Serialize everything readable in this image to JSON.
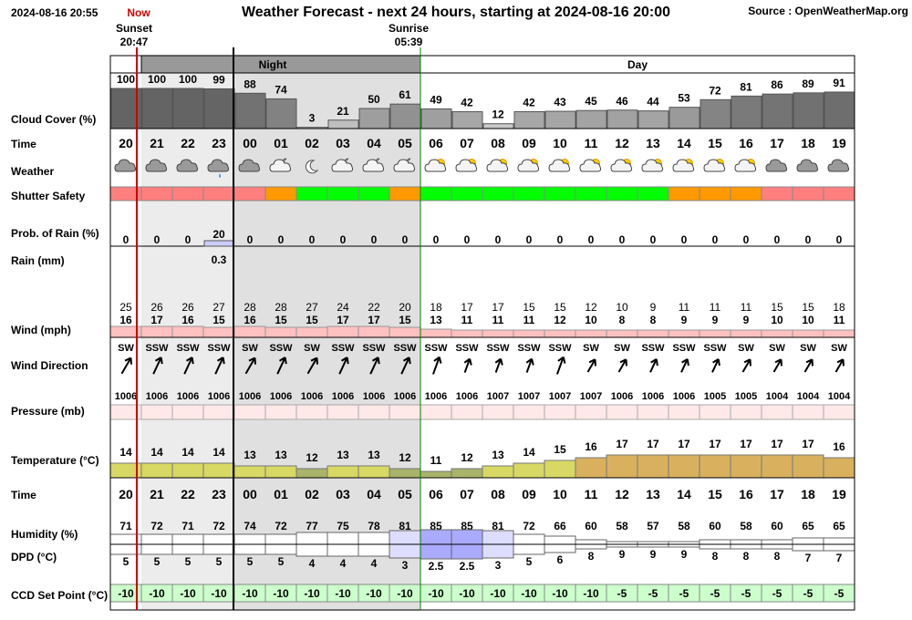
{
  "header": {
    "timestamp": "2024-08-16 20:55",
    "now_label": "Now",
    "title": "Weather Forecast - next 24 hours, starting at 2024-08-16 20:00",
    "source": "Source : OpenWeatherMap.org",
    "sunset_label": "Sunset",
    "sunset_time": "20:47",
    "sunrise_label": "Sunrise",
    "sunrise_time": "05:39",
    "night_label": "Night",
    "day_label": "Day"
  },
  "colors": {
    "shutter_red": "#ff7f7f",
    "shutter_orange": "#ff9900",
    "shutter_green": "#00ff00",
    "now_line": "#cc0000",
    "night_shade": "#e0e0e0",
    "ccd_fill": "#ccffcc",
    "wind_fill": "#ffc0c0",
    "pressure_fill": "#ffe8e8",
    "dpd_fill": "#aaaaff"
  },
  "chart_data": {
    "type": "table",
    "title": "Weather Forecast - next 24 hours, starting at 2024-08-16 20:00",
    "hours": [
      "20",
      "21",
      "22",
      "23",
      "00",
      "01",
      "02",
      "03",
      "04",
      "05",
      "06",
      "07",
      "08",
      "09",
      "10",
      "11",
      "12",
      "13",
      "14",
      "15",
      "16",
      "17",
      "18",
      "19"
    ],
    "row_labels": {
      "cloud": "Cloud Cover (%)",
      "time": "Time",
      "weather": "Weather",
      "shutter": "Shutter Safety",
      "rain_prob": "Prob. of Rain (%)",
      "rain": "Rain (mm)",
      "wind": "Wind (mph)",
      "wind_dir": "Wind Direction",
      "pressure": "Pressure (mb)",
      "temp": "Temperature (°C)",
      "time2": "Time",
      "humidity": "Humidity (%)",
      "dpd": "DPD (°C)",
      "ccd": "CCD Set Point (°C)"
    },
    "cloud_cover": [
      100,
      100,
      100,
      99,
      88,
      74,
      3,
      21,
      50,
      61,
      49,
      42,
      12,
      42,
      43,
      45,
      46,
      44,
      53,
      72,
      81,
      86,
      89,
      91
    ],
    "weather_icons": [
      "cloud-icon",
      "cloud-icon",
      "cloud-icon",
      "cloud-rain-icon",
      "cloud-icon",
      "cloud-moon-icon",
      "moon-icon",
      "cloud-moon-icon",
      "cloud-moon-icon",
      "cloud-moon-icon",
      "cloud-sun-icon",
      "cloud-sun-icon",
      "cloud-sun-icon",
      "cloud-sun-icon",
      "cloud-sun-icon",
      "cloud-sun-icon",
      "cloud-sun-icon",
      "cloud-sun-icon",
      "cloud-sun-icon",
      "cloud-sun-icon",
      "cloud-sun-icon",
      "cloud-icon",
      "cloud-icon",
      "cloud-icon"
    ],
    "shutter_safety": [
      "red",
      "red",
      "red",
      "red",
      "red",
      "orange",
      "green",
      "green",
      "green",
      "orange",
      "green",
      "green",
      "green",
      "green",
      "green",
      "green",
      "green",
      "green",
      "orange",
      "orange",
      "orange",
      "red",
      "red",
      "red"
    ],
    "rain_prob": [
      0,
      0,
      0,
      20,
      0,
      0,
      0,
      0,
      0,
      0,
      0,
      0,
      0,
      0,
      0,
      0,
      0,
      0,
      0,
      0,
      0,
      0,
      0,
      0
    ],
    "rain_mm": [
      "",
      "",
      "",
      "0.3",
      "",
      "",
      "",
      "",
      "",
      "",
      "",
      "",
      "",
      "",
      "",
      "",
      "",
      "",
      "",
      "",
      "",
      "",
      "",
      ""
    ],
    "wind_gust": [
      25,
      26,
      26,
      27,
      28,
      28,
      27,
      24,
      22,
      20,
      18,
      17,
      17,
      15,
      15,
      12,
      10,
      9,
      11,
      11,
      11,
      15,
      15,
      18
    ],
    "wind_speed": [
      16,
      17,
      16,
      15,
      16,
      15,
      15,
      17,
      17,
      15,
      13,
      11,
      11,
      11,
      12,
      10,
      8,
      8,
      9,
      9,
      9,
      10,
      10,
      11
    ],
    "wind_direction": [
      "SW",
      "SSW",
      "SSW",
      "SSW",
      "SW",
      "SSW",
      "SW",
      "SSW",
      "SSW",
      "SSW",
      "SSW",
      "SSW",
      "SSW",
      "SSW",
      "SSW",
      "SW",
      "SW",
      "SSW",
      "SSW",
      "SSW",
      "SW",
      "SW",
      "SW",
      "SW"
    ],
    "wind_arrow_deg": [
      210,
      205,
      205,
      205,
      210,
      205,
      210,
      205,
      205,
      205,
      200,
      200,
      200,
      200,
      200,
      210,
      210,
      205,
      205,
      205,
      210,
      210,
      210,
      210
    ],
    "pressure": [
      1006,
      1006,
      1006,
      1006,
      1006,
      1006,
      1006,
      1006,
      1006,
      1006,
      1006,
      1006,
      1007,
      1007,
      1007,
      1007,
      1006,
      1006,
      1006,
      1005,
      1005,
      1004,
      1004,
      1004
    ],
    "temperature": [
      14,
      14,
      14,
      14,
      13,
      13,
      12,
      13,
      13,
      12,
      11,
      12,
      13,
      14,
      15,
      16,
      17,
      17,
      17,
      17,
      17,
      17,
      17,
      16
    ],
    "humidity": [
      71,
      72,
      71,
      72,
      74,
      72,
      77,
      75,
      78,
      81,
      85,
      85,
      81,
      72,
      66,
      60,
      58,
      57,
      58,
      60,
      58,
      60,
      65,
      65
    ],
    "dpd": [
      "5",
      "5",
      "5",
      "5",
      "5",
      "5",
      "4",
      "4",
      "4",
      "3",
      "2.5",
      "2.5",
      "3",
      "5",
      "6",
      "8",
      "9",
      "9",
      "9",
      "8",
      "8",
      "8",
      "7",
      "7"
    ],
    "ccd_set_point": [
      -10,
      -10,
      -10,
      -10,
      -10,
      -10,
      -10,
      -10,
      -10,
      -10,
      -10,
      -10,
      -10,
      -10,
      -10,
      -10,
      -5,
      -5,
      -5,
      -5,
      -5,
      -5,
      -5,
      -5
    ]
  }
}
